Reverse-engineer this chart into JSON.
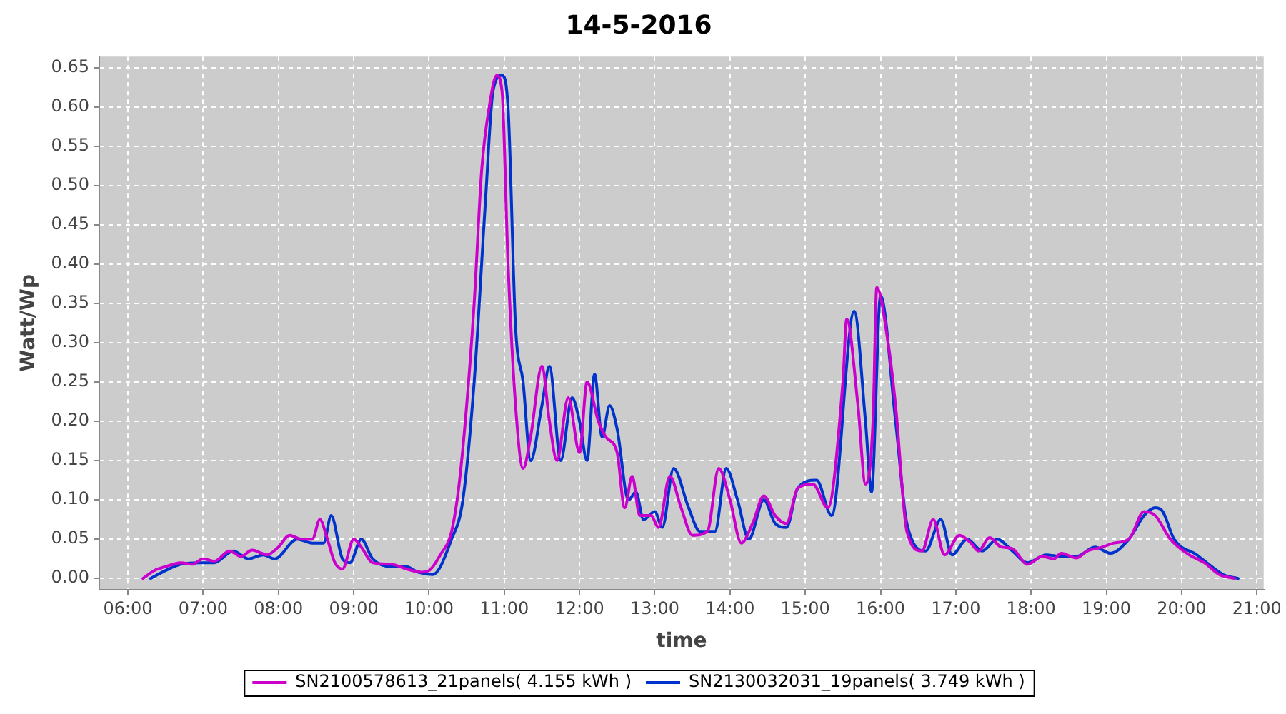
{
  "chart_data": {
    "type": "line",
    "title": "14-5-2016",
    "xlabel": "time",
    "ylabel": "Watt/Wp",
    "legend": "bottom",
    "grid": true,
    "marker": "none",
    "line_style": "solid",
    "xlim": [
      5.62,
      21.09
    ],
    "xticks": [
      {
        "value": 6,
        "label": "06:00"
      },
      {
        "value": 7,
        "label": "07:00"
      },
      {
        "value": 8,
        "label": "08:00"
      },
      {
        "value": 9,
        "label": "09:00"
      },
      {
        "value": 10,
        "label": "10:00"
      },
      {
        "value": 11,
        "label": "11:00"
      },
      {
        "value": 12,
        "label": "12:00"
      },
      {
        "value": 13,
        "label": "13:00"
      },
      {
        "value": 14,
        "label": "14:00"
      },
      {
        "value": 15,
        "label": "15:00"
      },
      {
        "value": 16,
        "label": "16:00"
      },
      {
        "value": 17,
        "label": "17:00"
      },
      {
        "value": 18,
        "label": "18:00"
      },
      {
        "value": 19,
        "label": "19:00"
      },
      {
        "value": 20,
        "label": "20:00"
      },
      {
        "value": 21,
        "label": "21:00"
      }
    ],
    "ylim": [
      -0.014,
      0.664
    ],
    "yticks": [
      {
        "value": 0,
        "label": "0.00"
      },
      {
        "value": 0.05,
        "label": "0.05"
      },
      {
        "value": 0.1,
        "label": "0.10"
      },
      {
        "value": 0.15,
        "label": "0.15"
      },
      {
        "value": 0.2,
        "label": "0.20"
      },
      {
        "value": 0.25,
        "label": "0.25"
      },
      {
        "value": 0.3,
        "label": "0.30"
      },
      {
        "value": 0.35,
        "label": "0.35"
      },
      {
        "value": 0.4,
        "label": "0.40"
      },
      {
        "value": 0.45,
        "label": "0.45"
      },
      {
        "value": 0.5,
        "label": "0.50"
      },
      {
        "value": 0.55,
        "label": "0.55"
      },
      {
        "value": 0.6,
        "label": "0.60"
      },
      {
        "value": 0.65,
        "label": "0.65"
      }
    ],
    "series": [
      {
        "name": "SN2100578613_21panels( 4.155 kWh )",
        "color": "#cc00cc",
        "x": [
          6.2,
          6.35,
          6.5,
          6.7,
          6.85,
          7.0,
          7.15,
          7.35,
          7.5,
          7.65,
          7.85,
          8.0,
          8.15,
          8.3,
          8.45,
          8.55,
          8.65,
          8.75,
          8.85,
          9.0,
          9.1,
          9.25,
          9.5,
          9.7,
          9.9,
          10.0,
          10.15,
          10.3,
          10.4,
          10.5,
          10.6,
          10.7,
          10.8,
          10.9,
          10.97,
          11.05,
          11.15,
          11.25,
          11.35,
          11.5,
          11.6,
          11.7,
          11.85,
          12.0,
          12.1,
          12.25,
          12.35,
          12.5,
          12.6,
          12.7,
          12.8,
          12.95,
          13.05,
          13.2,
          13.35,
          13.5,
          13.7,
          13.85,
          14.0,
          14.15,
          14.3,
          14.45,
          14.6,
          14.75,
          14.9,
          15.1,
          15.3,
          15.5,
          15.55,
          15.7,
          15.8,
          15.9,
          15.95,
          16.1,
          16.2,
          16.35,
          16.55,
          16.7,
          16.85,
          17.05,
          17.2,
          17.3,
          17.45,
          17.6,
          17.75,
          17.95,
          18.15,
          18.3,
          18.4,
          18.6,
          18.75,
          18.95,
          19.1,
          19.3,
          19.5,
          19.65,
          19.85,
          20.1,
          20.3,
          20.5,
          20.7
        ],
        "values": [
          0.0,
          0.01,
          0.015,
          0.02,
          0.018,
          0.025,
          0.022,
          0.035,
          0.028,
          0.036,
          0.03,
          0.04,
          0.055,
          0.05,
          0.05,
          0.075,
          0.05,
          0.02,
          0.012,
          0.05,
          0.04,
          0.02,
          0.018,
          0.012,
          0.008,
          0.01,
          0.03,
          0.06,
          0.12,
          0.22,
          0.35,
          0.52,
          0.6,
          0.64,
          0.62,
          0.4,
          0.22,
          0.14,
          0.18,
          0.27,
          0.2,
          0.15,
          0.23,
          0.16,
          0.25,
          0.2,
          0.18,
          0.16,
          0.09,
          0.13,
          0.08,
          0.08,
          0.065,
          0.13,
          0.09,
          0.055,
          0.06,
          0.14,
          0.1,
          0.045,
          0.07,
          0.105,
          0.08,
          0.07,
          0.115,
          0.12,
          0.09,
          0.25,
          0.33,
          0.22,
          0.12,
          0.2,
          0.37,
          0.3,
          0.22,
          0.06,
          0.035,
          0.075,
          0.03,
          0.055,
          0.045,
          0.035,
          0.052,
          0.04,
          0.038,
          0.018,
          0.028,
          0.025,
          0.032,
          0.026,
          0.035,
          0.04,
          0.045,
          0.05,
          0.085,
          0.08,
          0.05,
          0.03,
          0.02,
          0.005,
          0.0
        ]
      },
      {
        "name": "SN2130032031_19panels( 3.749 kWh )",
        "color": "#0033cc",
        "x": [
          6.3,
          6.5,
          6.7,
          6.95,
          7.15,
          7.4,
          7.6,
          7.8,
          7.95,
          8.25,
          8.45,
          8.6,
          8.7,
          8.85,
          8.95,
          9.1,
          9.25,
          9.5,
          9.7,
          9.85,
          10.05,
          10.3,
          10.45,
          10.6,
          10.75,
          10.85,
          10.97,
          11.05,
          11.15,
          11.25,
          11.35,
          11.5,
          11.6,
          11.75,
          11.9,
          12.0,
          12.1,
          12.2,
          12.3,
          12.4,
          12.5,
          12.65,
          12.75,
          12.85,
          13.0,
          13.1,
          13.25,
          13.45,
          13.6,
          13.8,
          13.95,
          14.1,
          14.25,
          14.45,
          14.6,
          14.75,
          14.9,
          15.15,
          15.35,
          15.65,
          15.8,
          15.88,
          16.0,
          16.2,
          16.35,
          16.6,
          16.8,
          16.95,
          17.15,
          17.35,
          17.55,
          17.75,
          17.95,
          18.2,
          18.4,
          18.6,
          18.85,
          19.05,
          19.3,
          19.5,
          19.65,
          19.75,
          19.9,
          20.2,
          20.4,
          20.55,
          20.75
        ],
        "values": [
          0.0,
          0.01,
          0.018,
          0.02,
          0.02,
          0.035,
          0.025,
          0.03,
          0.025,
          0.05,
          0.045,
          0.045,
          0.08,
          0.025,
          0.02,
          0.05,
          0.025,
          0.015,
          0.015,
          0.008,
          0.005,
          0.05,
          0.1,
          0.25,
          0.48,
          0.62,
          0.64,
          0.6,
          0.32,
          0.25,
          0.15,
          0.22,
          0.27,
          0.15,
          0.23,
          0.2,
          0.15,
          0.26,
          0.18,
          0.22,
          0.19,
          0.1,
          0.11,
          0.075,
          0.085,
          0.065,
          0.14,
          0.09,
          0.06,
          0.06,
          0.14,
          0.1,
          0.05,
          0.1,
          0.07,
          0.065,
          0.115,
          0.125,
          0.08,
          0.34,
          0.2,
          0.11,
          0.36,
          0.2,
          0.07,
          0.035,
          0.075,
          0.03,
          0.05,
          0.035,
          0.05,
          0.035,
          0.02,
          0.03,
          0.028,
          0.028,
          0.04,
          0.032,
          0.05,
          0.08,
          0.09,
          0.085,
          0.05,
          0.03,
          0.015,
          0.005,
          0.0
        ]
      }
    ]
  }
}
